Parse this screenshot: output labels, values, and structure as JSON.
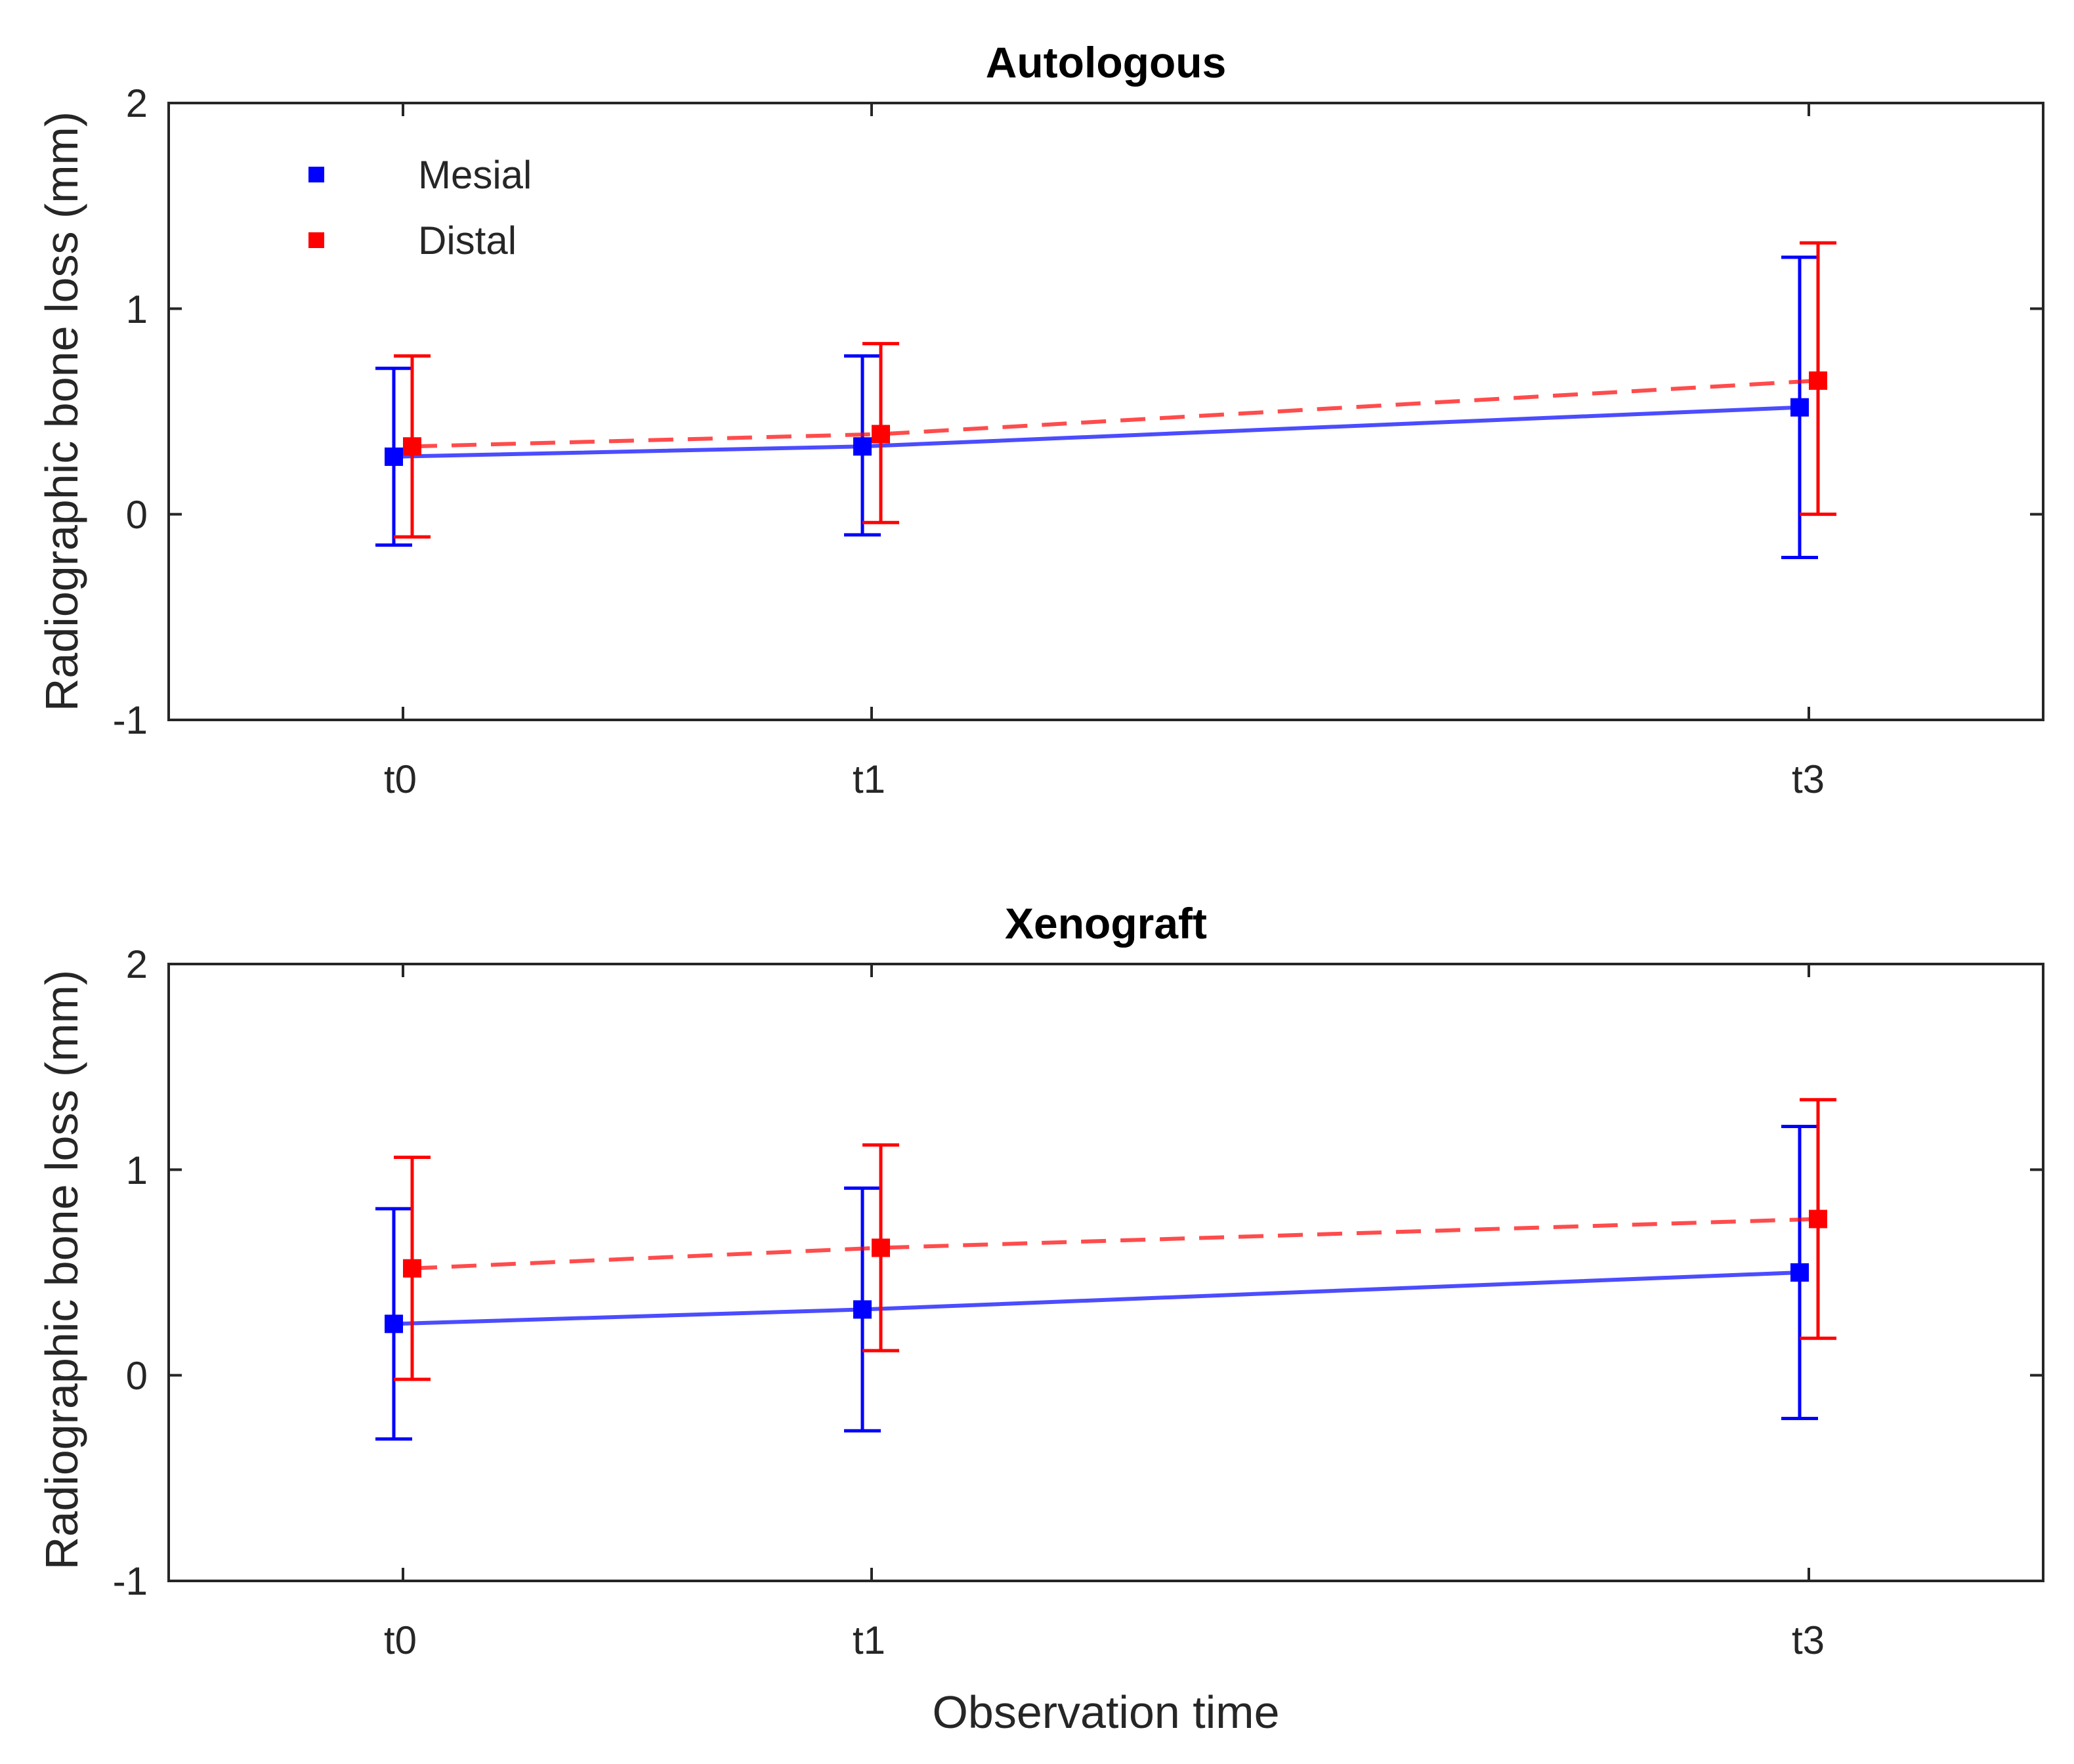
{
  "chart_data": [
    {
      "type": "line",
      "title": "Autologous",
      "ylabel": "Radiographic bone loss (mm)",
      "xlabel": "",
      "categories": [
        "t0",
        "t1",
        "t3"
      ],
      "x": [
        0,
        1,
        3
      ],
      "xlim": [
        -0.5,
        3.5
      ],
      "ylim": [
        -1,
        2
      ],
      "yticks": [
        "-1",
        "0",
        "1",
        "2"
      ],
      "grid": false,
      "legend_position": "top-left",
      "legend": [
        "Mesial",
        "Distal"
      ],
      "series": [
        {
          "name": "Mesial",
          "color": "#0000ff",
          "line_style": "solid",
          "values": [
            0.28,
            0.33,
            0.52
          ],
          "error_low": [
            -0.15,
            -0.1,
            -0.21
          ],
          "error_high": [
            0.71,
            0.77,
            1.25
          ]
        },
        {
          "name": "Distal",
          "color": "#ff0000",
          "line_style": "dashed",
          "values": [
            0.33,
            0.39,
            0.65
          ],
          "error_low": [
            -0.11,
            -0.04,
            0.0
          ],
          "error_high": [
            0.77,
            0.83,
            1.32
          ]
        }
      ]
    },
    {
      "type": "line",
      "title": "Xenograft",
      "ylabel": "Radiographic bone loss (mm)",
      "xlabel": "Observation time",
      "categories": [
        "t0",
        "t1",
        "t3"
      ],
      "x": [
        0,
        1,
        3
      ],
      "xlim": [
        -0.5,
        3.5
      ],
      "ylim": [
        -1,
        2
      ],
      "yticks": [
        "-1",
        "0",
        "1",
        "2"
      ],
      "grid": false,
      "legend_position": "none",
      "legend": [],
      "series": [
        {
          "name": "Mesial",
          "color": "#0000ff",
          "line_style": "solid",
          "values": [
            0.25,
            0.32,
            0.5
          ],
          "error_low": [
            -0.31,
            -0.27,
            -0.21
          ],
          "error_high": [
            0.81,
            0.91,
            1.21
          ]
        },
        {
          "name": "Distal",
          "color": "#ff0000",
          "line_style": "dashed",
          "values": [
            0.52,
            0.62,
            0.76
          ],
          "error_low": [
            -0.02,
            0.12,
            0.18
          ],
          "error_high": [
            1.06,
            1.12,
            1.34
          ]
        }
      ]
    }
  ]
}
